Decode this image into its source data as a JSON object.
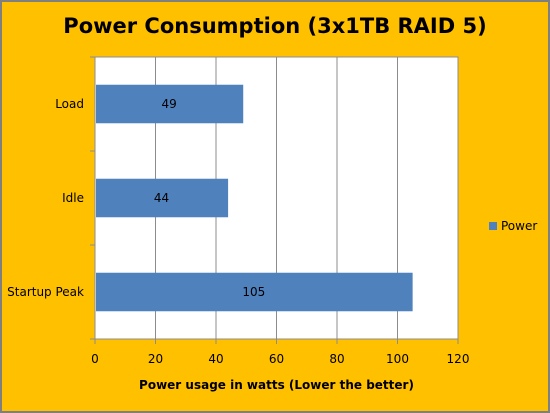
{
  "chart_data": {
    "type": "bar",
    "orientation": "horizontal",
    "title": "Power Consumption (3x1TB RAID 5)",
    "xlabel": "Power usage in watts (Lower the better)",
    "ylabel": "",
    "categories": [
      "Load",
      "Idle",
      "Startup Peak"
    ],
    "series": [
      {
        "name": "Power",
        "values": [
          49,
          44,
          105
        ],
        "color": "#4f81bd"
      }
    ],
    "xlim": [
      0,
      120
    ],
    "xticks": [
      0,
      20,
      40,
      60,
      80,
      100,
      120
    ],
    "grid": true,
    "legend": "right",
    "data_labels": true,
    "background_color": "#ffc000",
    "plot_background": "#ffffff"
  }
}
